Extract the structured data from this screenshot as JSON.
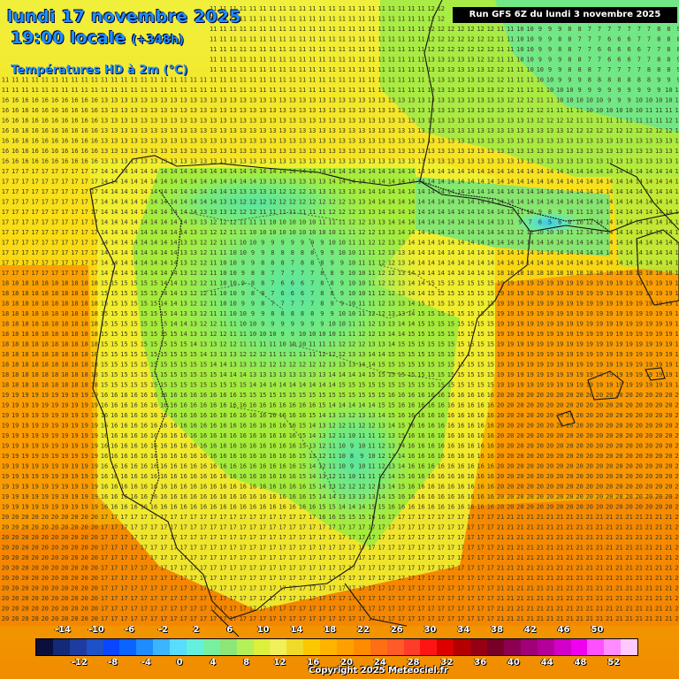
{
  "header": {
    "date": "lundi 17 novembre 2025",
    "time": "19:00 locale",
    "offset": "(+348h)",
    "subtitle": "Températures HD à 2m (°C)",
    "run": "Run GFS 6Z du lundi 3 novembre 2025"
  },
  "footer": {
    "copyright": "Copyright 2025 Meteociel.fr"
  },
  "legend": {
    "top_labels": [
      "-14",
      "-10",
      "-6",
      "-2",
      "2",
      "6",
      "10",
      "14",
      "18",
      "22",
      "26",
      "30",
      "34",
      "38",
      "42",
      "46",
      "50"
    ],
    "bottom_labels": [
      "-12",
      "-8",
      "-4",
      "0",
      "4",
      "8",
      "12",
      "16",
      "20",
      "24",
      "28",
      "32",
      "36",
      "40",
      "44",
      "48",
      "52"
    ],
    "colors": [
      "#0a0f3c",
      "#142a78",
      "#1e3ca0",
      "#1e50c8",
      "#0a46ff",
      "#0a64ff",
      "#1e8cff",
      "#3cb4ff",
      "#5adcff",
      "#64f0dc",
      "#78f0a0",
      "#8ce678",
      "#b4f05a",
      "#dcf03c",
      "#f0f05a",
      "#f0dc28",
      "#fac800",
      "#ffb400",
      "#ffa000",
      "#ff8c00",
      "#ff6e14",
      "#ff5a28",
      "#ff3c28",
      "#ff1414",
      "#dc0000",
      "#b40000",
      "#960014",
      "#780028",
      "#8c0050",
      "#a00078",
      "#b4009b",
      "#d200c8",
      "#f000f0",
      "#ff50ff",
      "#ff8cff",
      "#ffc8ff"
    ]
  },
  "map": {
    "field_value_range": [
      0,
      19
    ],
    "grid_values_shown": "2m temperature numbers in °C on a regular grid"
  }
}
